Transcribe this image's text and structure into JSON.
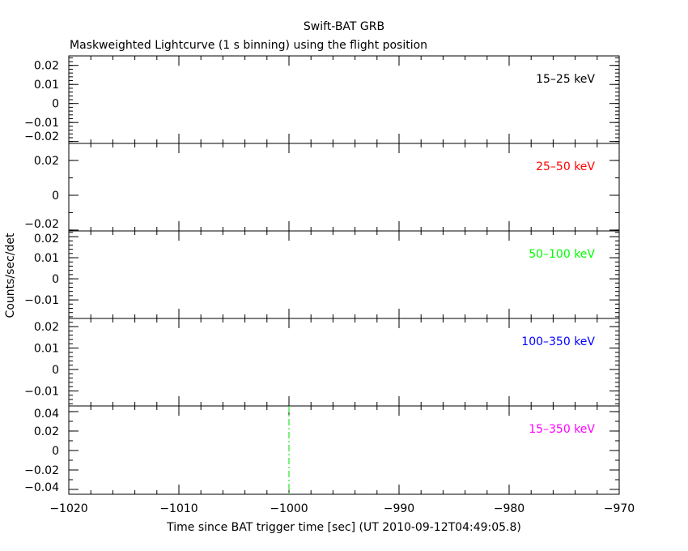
{
  "chart_data": {
    "type": "line",
    "title": "Swift-BAT GRB",
    "subtitle": "Maskweighted Lightcurve (1 s binning) using the flight position",
    "xlabel": "Time since BAT trigger time [sec] (UT 2010-09-12T04:49:05.8)",
    "ylabel": "Counts/sec/det",
    "xlim": [
      -1020,
      -970
    ],
    "xticks": [
      -1020,
      -1010,
      -1000,
      -990,
      -980,
      -970
    ],
    "xtick_labels": [
      "−1020",
      "−1010",
      "−1000",
      "−990",
      "−980",
      "−970"
    ],
    "trigger_marker_x": -1000,
    "panels": [
      {
        "label": "15–25 keV",
        "color": "#000000",
        "ylim": [
          -0.021,
          0.025
        ],
        "yticks": [
          0.02,
          0.01,
          0,
          -0.01,
          -0.02
        ],
        "ytick_labels": [
          "0.02",
          "0.01",
          "0",
          "−0.01",
          "−0.02"
        ],
        "minor": 0.002,
        "values": []
      },
      {
        "label": "25–50 keV",
        "color": "#ff0000",
        "ylim": [
          -0.0205,
          0.0298
        ],
        "yticks": [
          0.02,
          0,
          -0.02
        ],
        "ytick_labels": [
          "0.02",
          "0",
          "−0.02"
        ],
        "minor": 0.01,
        "values": []
      },
      {
        "label": "50–100 keV",
        "color": "#00ff00",
        "ylim": [
          -0.0188,
          0.0227
        ],
        "yticks": [
          0.02,
          0.01,
          0,
          -0.01
        ],
        "ytick_labels": [
          "0.02",
          "0.01",
          "0",
          "−0.01"
        ],
        "minor": 0.002,
        "values": []
      },
      {
        "label": "100–350 keV",
        "color": "#0000ff",
        "ylim": [
          -0.017,
          0.0238
        ],
        "yticks": [
          0.02,
          0.01,
          0,
          -0.01
        ],
        "ytick_labels": [
          "0.02",
          "0.01",
          "0",
          "−0.01"
        ],
        "minor": 0.002,
        "values": []
      },
      {
        "label": "15–350 keV",
        "color": "#ff00ff",
        "ylim": [
          -0.045,
          0.0458
        ],
        "yticks": [
          0.04,
          0.02,
          0,
          -0.02,
          -0.04
        ],
        "ytick_labels": [
          "0.04",
          "0.02",
          "0",
          "−0.02",
          "−0.04"
        ],
        "minor": 0.01,
        "values": []
      }
    ]
  }
}
